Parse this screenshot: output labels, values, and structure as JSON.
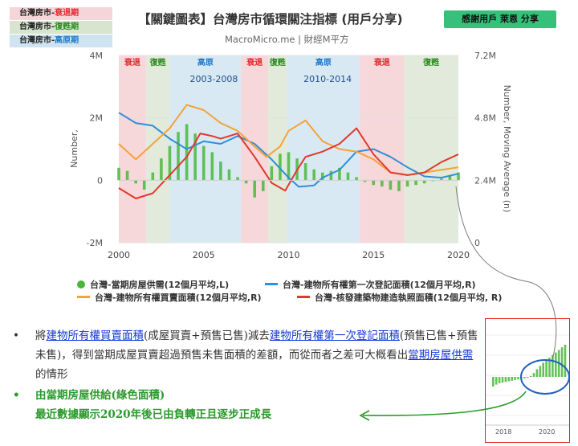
{
  "phase_legend": [
    {
      "prefix": "台灣房市-",
      "phase": "衰退期",
      "color": "#e0242b"
    },
    {
      "prefix": "台灣房市-",
      "phase": "復甦期",
      "color": "#2d8a20"
    },
    {
      "prefix": "台灣房市-",
      "phase": "高原期",
      "color": "#1f78c8"
    }
  ],
  "header": {
    "title": "【關鍵圖表】台灣房市循環關注指標 (用戶分享)",
    "subtitle": "MacroMicro.me | 財經M平方",
    "credit": "感謝用戶 萊恩 分享"
  },
  "chart_data": {
    "type": "line",
    "x_range": [
      2000,
      2020
    ],
    "x_ticks": [
      "2000",
      "2005",
      "2010",
      "2015",
      "2020"
    ],
    "left_axis": {
      "label": "Number,",
      "ticks": [
        "4M",
        "2M",
        "0",
        "-2M"
      ],
      "range": [
        -2000000,
        4000000
      ]
    },
    "right_axis": {
      "label": "Number, Moving Average (n)",
      "ticks": [
        "7.2M",
        "4.8M",
        "2.4M",
        "0"
      ],
      "range": [
        0,
        7200000
      ]
    },
    "phases": [
      {
        "label": "衰退",
        "kind": "recession",
        "start": 2000.0,
        "end": 2001.6,
        "color": "#f4d0d3"
      },
      {
        "label": "復甦",
        "kind": "recovery",
        "start": 2001.6,
        "end": 2003.0,
        "color": "#dde6d5"
      },
      {
        "label": "高原",
        "kind": "plateau",
        "start": 2003.0,
        "end": 2007.2,
        "color": "#d2e5f1"
      },
      {
        "label": "衰退",
        "kind": "recession",
        "start": 2007.2,
        "end": 2008.8,
        "color": "#f4d0d3"
      },
      {
        "label": "復甦",
        "kind": "recovery",
        "start": 2008.8,
        "end": 2009.9,
        "color": "#dde6d5"
      },
      {
        "label": "高原",
        "kind": "plateau",
        "start": 2009.9,
        "end": 2014.2,
        "color": "#d2e5f1"
      },
      {
        "label": "衰退",
        "kind": "recession",
        "start": 2014.2,
        "end": 2016.8,
        "color": "#f4d0d3"
      },
      {
        "label": "復甦",
        "kind": "recovery",
        "start": 2016.8,
        "end": 2020.0,
        "color": "#dde6d5"
      }
    ],
    "annotations": [
      {
        "text": "2003-2008",
        "x": 2005.6,
        "y": 3250000
      },
      {
        "text": "2010-2014",
        "x": 2012.3,
        "y": 3250000
      }
    ],
    "series": [
      {
        "name": "台灣-當期房屋供需(12個月平均,L)",
        "type": "bar",
        "axis": "left",
        "color": "#49b83a",
        "x": [
          2000.0,
          2000.5,
          2001.0,
          2001.5,
          2002.0,
          2002.5,
          2003.0,
          2003.5,
          2004.0,
          2004.5,
          2005.0,
          2005.5,
          2006.0,
          2006.5,
          2007.0,
          2007.5,
          2008.0,
          2008.5,
          2009.0,
          2009.5,
          2010.0,
          2010.5,
          2011.0,
          2011.5,
          2012.0,
          2012.5,
          2013.0,
          2013.5,
          2014.0,
          2014.5,
          2015.0,
          2015.5,
          2016.0,
          2016.5,
          2017.0,
          2017.5,
          2018.0,
          2018.5,
          2019.0,
          2019.5,
          2020.0
        ],
        "values": [
          400000,
          300000,
          -100000,
          -300000,
          250000,
          700000,
          1100000,
          1550000,
          1800000,
          1500000,
          1100000,
          900000,
          600000,
          350000,
          100000,
          -100000,
          -550000,
          -350000,
          450000,
          850000,
          900000,
          700000,
          550000,
          350000,
          250000,
          300000,
          400000,
          250000,
          100000,
          -50000,
          -150000,
          -200000,
          -300000,
          -350000,
          -200000,
          -150000,
          -100000,
          0,
          50000,
          150000,
          250000
        ]
      },
      {
        "name": "台灣-建物所有權第一次登記面積(12個月平均,R)",
        "type": "line",
        "axis": "right",
        "color": "#2f8fd8",
        "x": [
          2000.0,
          2001.0,
          2002.0,
          2003.0,
          2004.0,
          2005.0,
          2006.0,
          2007.0,
          2008.0,
          2009.0,
          2010.0,
          2010.6,
          2011.5,
          2012.0,
          2013.0,
          2014.0,
          2015.0,
          2016.0,
          2017.0,
          2018.0,
          2019.0,
          2020.0
        ],
        "values": [
          5000000,
          4600000,
          4500000,
          4000000,
          3600000,
          3900000,
          3800000,
          4100000,
          3800000,
          3200000,
          2500000,
          2150000,
          2200000,
          2500000,
          2800000,
          3500000,
          3600000,
          3300000,
          2900000,
          2550000,
          2500000,
          2650000
        ]
      },
      {
        "name": "台灣-建物所有權買賣面積(12個月平均,R)",
        "type": "line",
        "axis": "right",
        "color": "#f4a23a",
        "x": [
          2000.0,
          2001.0,
          2002.0,
          2003.0,
          2004.0,
          2005.0,
          2006.0,
          2007.0,
          2008.0,
          2008.7,
          2009.5,
          2010.0,
          2011.0,
          2012.0,
          2013.0,
          2014.0,
          2015.0,
          2016.0,
          2017.0,
          2018.0,
          2019.0,
          2020.0
        ],
        "values": [
          3800000,
          3200000,
          3800000,
          4400000,
          5300000,
          5100000,
          4600000,
          4300000,
          3700000,
          3300000,
          3700000,
          4300000,
          4700000,
          3900000,
          3600000,
          3500000,
          3200000,
          2700000,
          2600000,
          2700000,
          2800000,
          2900000
        ]
      },
      {
        "name": "台灣-核發建築物建造執照面積(12個月平均, R)",
        "type": "line",
        "axis": "right",
        "color": "#e0392b",
        "x": [
          2000.0,
          2001.0,
          2002.0,
          2003.0,
          2004.0,
          2004.8,
          2005.5,
          2006.0,
          2007.0,
          2008.0,
          2009.0,
          2009.8,
          2010.5,
          2011.0,
          2012.0,
          2013.0,
          2014.0,
          2015.0,
          2016.0,
          2017.0,
          2018.0,
          2019.0,
          2020.0
        ],
        "values": [
          2100000,
          1700000,
          1900000,
          2600000,
          3300000,
          4200000,
          4100000,
          4000000,
          4200000,
          3300000,
          2300000,
          2000000,
          2800000,
          3300000,
          3500000,
          3800000,
          4400000,
          3400000,
          2700000,
          2600000,
          2700000,
          3100000,
          3400000
        ]
      }
    ]
  },
  "legend": [
    {
      "label": "台灣-當期房屋供需(12個月平均,L)",
      "color": "#49b83a",
      "marker": "dot"
    },
    {
      "label": "台灣-建物所有權第一次登記面積(12個月平均,R)",
      "color": "#2f8fd8",
      "marker": "line"
    },
    {
      "label": "台灣-建物所有權買賣面積(12個月平均,R)",
      "color": "#f4a23a",
      "marker": "line"
    },
    {
      "label": "台灣-核發建築物建造執照面積(12個月平均, R)",
      "color": "#e0392b",
      "marker": "line"
    }
  ],
  "notes": {
    "bullet1": {
      "t1": "將",
      "link1": "建物所有權買賣面積",
      "t2": "(成屋買賣+預售已售)減去",
      "link2": "建物所有權第一次登記面積",
      "t3": "(預售已售+預售未售)，得到當期成屋買賣超過預售未售面積的差額，而從而者之差可大概看出",
      "link3": "當期房屋供需",
      "t4": "的情形"
    },
    "bullet2": {
      "line1": "由當期房屋供給(綠色面積)",
      "line2": "最近數據顯示2020年後已由負轉正且逐步正成長"
    }
  },
  "inset": {
    "x_ticks": [
      "2018",
      "2020"
    ],
    "values": [
      -150000,
      -120000,
      -100000,
      -90000,
      -80000,
      -70000,
      -60000,
      -50000,
      -40000,
      -30000,
      -20000,
      -10000,
      0,
      60000,
      120000,
      170000,
      220000,
      260000,
      300000,
      340000,
      380000,
      420000,
      460000,
      500000
    ]
  }
}
